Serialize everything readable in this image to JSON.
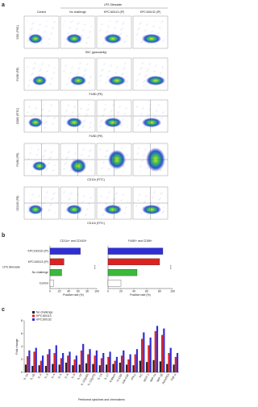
{
  "panel_a": {
    "letter": "a",
    "header": "LPS Stimulate",
    "columns": [
      "Control",
      "No challenge",
      "KPC160113 (IP)",
      "KPC160132 (IP)"
    ],
    "rows": [
      {
        "ylabel": "SSC (FSC)",
        "xlabel": "SSC (granularity)"
      },
      {
        "ylabel": "F4/80 (PE)",
        "xlabel": "F4/80 (PE)"
      },
      {
        "ylabel": "CD80 (FITC)",
        "xlabel": "F4/80 (PE)"
      },
      {
        "ylabel": "F4/80 (PE)",
        "xlabel": "CD11b (FITC)"
      },
      {
        "ylabel": "CD163 (PE)",
        "xlabel": "CD11b (FITC)"
      }
    ]
  },
  "panel_b_letter": "b",
  "panel_c_letter": "c",
  "chart_data": [
    {
      "type": "hbar",
      "title": "CD11c+ and CD163+",
      "group_label": "LPS stimulate",
      "categories": [
        "KPC160132 (IP)",
        "KPC160113 (IP)",
        "No challenge",
        "Control"
      ],
      "values": [
        65,
        30,
        25,
        8
      ],
      "colors": [
        "#2f2fd6",
        "#e02020",
        "#3cb83c",
        "#ffffff"
      ],
      "xlim": [
        0,
        100
      ],
      "xticks": [
        0,
        20,
        40,
        60,
        80,
        100
      ],
      "xlabel": "Positive rate (%)",
      "annotation": "****"
    },
    {
      "type": "hbar",
      "title": "F4/80+ and CD86+",
      "values": [
        85,
        80,
        45,
        20
      ],
      "colors": [
        "#2f2fd6",
        "#e02020",
        "#3cb83c",
        "#ffffff"
      ],
      "xlim": [
        0,
        100
      ],
      "xticks": [
        0,
        20,
        40,
        60,
        80,
        100
      ],
      "xlabel": "Positive rate (%)",
      "annotation": "****"
    },
    {
      "type": "bar",
      "ylabel": "Fold change",
      "xlabel": "Peritoneal cytokines and chemokines",
      "ylim": [
        0,
        8
      ],
      "yticks": [
        0,
        2,
        4,
        6,
        8
      ],
      "categories": [
        "IL-1α",
        "IL-1β",
        "IL-2",
        "IL-3",
        "IL-4",
        "IL-5",
        "IL-6",
        "IL-9",
        "IL-10",
        "IL-12(p40)",
        "IL-12(p70)",
        "IL-13",
        "IL-17",
        "Eotaxin",
        "G-CSF",
        "GM-CSF",
        "IFN-γ",
        "KC",
        "MCP-1",
        "MIP-1α",
        "MIP-1β",
        "RANTES",
        "TNF-α"
      ],
      "series": [
        {
          "name": "No challenge",
          "color": "#222222",
          "values": [
            1.2,
            1.0,
            1.1,
            1.0,
            1.3,
            1.2,
            1.5,
            1.1,
            1.2,
            1.4,
            1.3,
            1.1,
            1.2,
            1.3,
            1.5,
            1.2,
            1.1,
            1.8,
            1.6,
            1.9,
            1.7,
            1.3,
            1.2
          ]
        },
        {
          "name": "KPC160113",
          "color": "#e02020",
          "values": [
            2.5,
            3.2,
            1.8,
            2.8,
            3.0,
            2.2,
            2.6,
            2.0,
            3.4,
            2.8,
            2.6,
            2.2,
            2.4,
            1.8,
            2.6,
            2.0,
            2.8,
            5.2,
            4.2,
            6.4,
            5.8,
            3.0,
            2.4
          ]
        },
        {
          "name": "KPC160132",
          "color": "#2f2fd6",
          "values": [
            3.4,
            3.8,
            2.6,
            3.6,
            4.2,
            3.0,
            3.2,
            2.6,
            4.4,
            3.6,
            3.4,
            3.0,
            3.2,
            2.4,
            3.4,
            2.8,
            3.6,
            6.2,
            5.4,
            7.2,
            6.8,
            3.8,
            3.0
          ]
        }
      ]
    }
  ]
}
